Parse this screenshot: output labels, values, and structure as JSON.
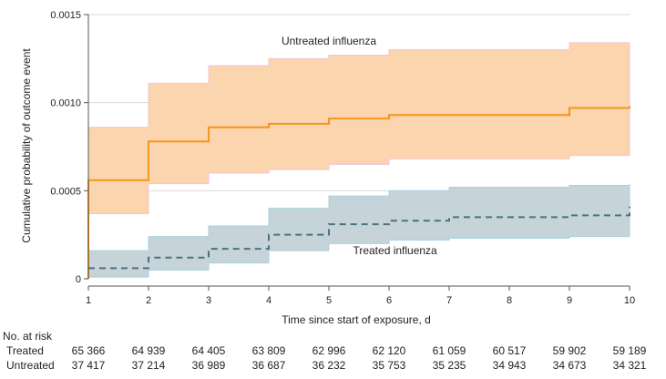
{
  "chart_data": {
    "type": "line",
    "xlabel": "Time since start of exposure, d",
    "ylabel": "Cumulative probability of outcome event",
    "xlim": [
      1,
      10
    ],
    "ylim": [
      0,
      0.0015
    ],
    "x_ticks": [
      "1",
      "2",
      "3",
      "4",
      "5",
      "6",
      "7",
      "8",
      "9",
      "10"
    ],
    "y_ticks": [
      "0",
      "0.0005",
      "0.0010",
      "0.0015"
    ],
    "grid": "horizontal",
    "step_x": [
      1,
      2,
      3,
      4,
      5,
      6,
      7,
      8,
      9,
      10
    ],
    "series": [
      {
        "name": "Untreated influenza",
        "style": "solid",
        "color": "#f7941d",
        "band_color": "#fbd5ad",
        "estimate": [
          0.00056,
          0.00078,
          0.00086,
          0.00088,
          0.00091,
          0.00093,
          0.00093,
          0.00093,
          0.00097,
          0.00098
        ],
        "ci_lower": [
          0.00037,
          0.00054,
          0.0006,
          0.00062,
          0.00065,
          0.00068,
          0.00068,
          0.00068,
          0.0007,
          0.0007
        ],
        "ci_upper": [
          0.00086,
          0.00111,
          0.00121,
          0.00125,
          0.00127,
          0.0013,
          0.0013,
          0.0013,
          0.00134,
          0.00134
        ],
        "start": 0.0
      },
      {
        "name": "Treated influenza",
        "style": "dashed",
        "color": "#4a7283",
        "band_color": "#c6d4d9",
        "estimate": [
          6e-05,
          0.00012,
          0.00017,
          0.00025,
          0.00031,
          0.00033,
          0.00035,
          0.00035,
          0.00036,
          0.00041
        ],
        "ci_lower": [
          1e-05,
          5e-05,
          9e-05,
          0.00016,
          0.0002,
          0.00022,
          0.00023,
          0.00023,
          0.00024,
          0.00024
        ],
        "ci_upper": [
          0.00016,
          0.00024,
          0.0003,
          0.0004,
          0.00047,
          0.0005,
          0.00052,
          0.00052,
          0.00053,
          0.00054
        ],
        "start": 6e-05
      }
    ],
    "annotations": [
      {
        "text": "Untreated influenza",
        "x": 5.0,
        "y": 0.00133
      },
      {
        "text": "Treated influenza",
        "x": 6.1,
        "y": 0.00014
      }
    ]
  },
  "risk_table": {
    "title": "No. at risk",
    "rows": [
      {
        "label": "Treated",
        "values": [
          "65 366",
          "64 939",
          "64 405",
          "63 809",
          "62 996",
          "62 120",
          "61 059",
          "60 517",
          "59 902",
          "59 189"
        ]
      },
      {
        "label": "Untreated",
        "values": [
          "37 417",
          "37 214",
          "36 989",
          "36 687",
          "36 232",
          "35 753",
          "35 235",
          "34 943",
          "34 673",
          "34 321"
        ]
      }
    ]
  }
}
